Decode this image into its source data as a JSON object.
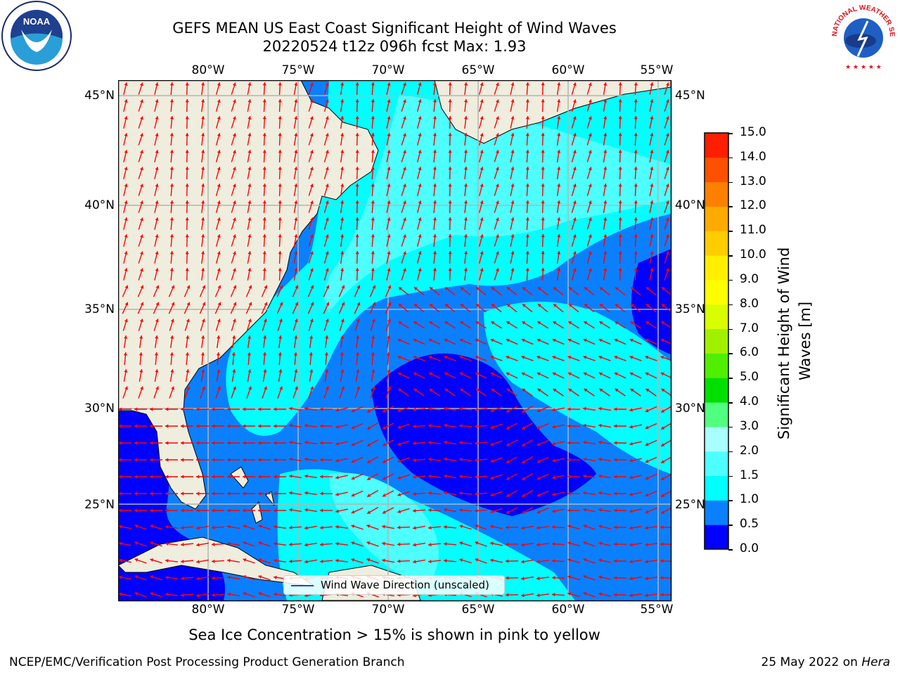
{
  "title": {
    "line1": "GEFS MEAN US East Coast Significant Height of Wind Waves",
    "line2": "20220524 t12z 096h fcst   Max: 1.93"
  },
  "map": {
    "lon_labels": [
      "80°W",
      "75°W",
      "70°W",
      "65°W",
      "60°W",
      "55°W"
    ],
    "lat_labels": [
      "45°N",
      "40°N",
      "35°N",
      "30°N",
      "25°N"
    ],
    "extent": {
      "lon_min": -85,
      "lon_max": -54.3,
      "lat_min": 20.5,
      "lat_max": 46
    },
    "legend_label": "Wind Wave Direction (unscaled)",
    "colors": {
      "land": "#efedde",
      "coast": "#000000",
      "grid": "#b4b4b4",
      "arrow": "#ff0000"
    }
  },
  "colorbar": {
    "label": "Significant Height of Wind Waves [m]",
    "ticks": [
      "0.0",
      "0.5",
      "1.0",
      "1.5",
      "2.0",
      "3.0",
      "4.0",
      "5.0",
      "6.0",
      "7.0",
      "8.0",
      "9.0",
      "10.0",
      "11.0",
      "12.0",
      "13.0",
      "14.0",
      "15.0"
    ],
    "colors": [
      "#0000ff",
      "#0a80ff",
      "#00ffff",
      "#4dffff",
      "#a8ffff",
      "#50ff80",
      "#00e000",
      "#50ee00",
      "#a0f000",
      "#d8ff00",
      "#ffff00",
      "#ffee00",
      "#ffcc00",
      "#ffaa00",
      "#ff8000",
      "#ff5000",
      "#ff1e00"
    ]
  },
  "note": "Sea Ice Concentration > 15% is shown in pink to yellow",
  "footer": {
    "left": "NCEP/EMC/Verification Post Processing Product Generation Branch",
    "date": "25 May 2022 on",
    "machine": "Hera"
  },
  "logos": {
    "noaa": "NOAA",
    "nws": "NATIONAL WEATHER SERVICE"
  }
}
